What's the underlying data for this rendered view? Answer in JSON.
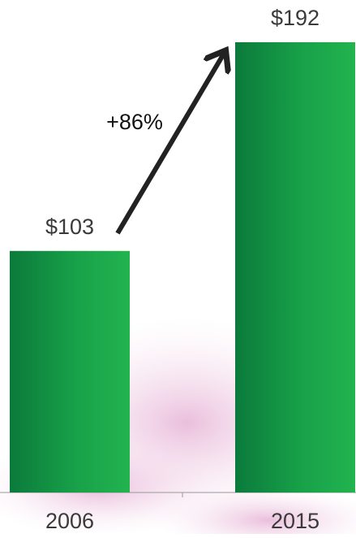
{
  "chart_data": {
    "type": "bar",
    "categories": [
      "2006",
      "2015"
    ],
    "values": [
      103,
      192
    ],
    "value_labels": [
      "$103",
      "$192"
    ],
    "annotation": "+86%",
    "color": "#1aa54a",
    "ylim": [
      0,
      210
    ]
  }
}
